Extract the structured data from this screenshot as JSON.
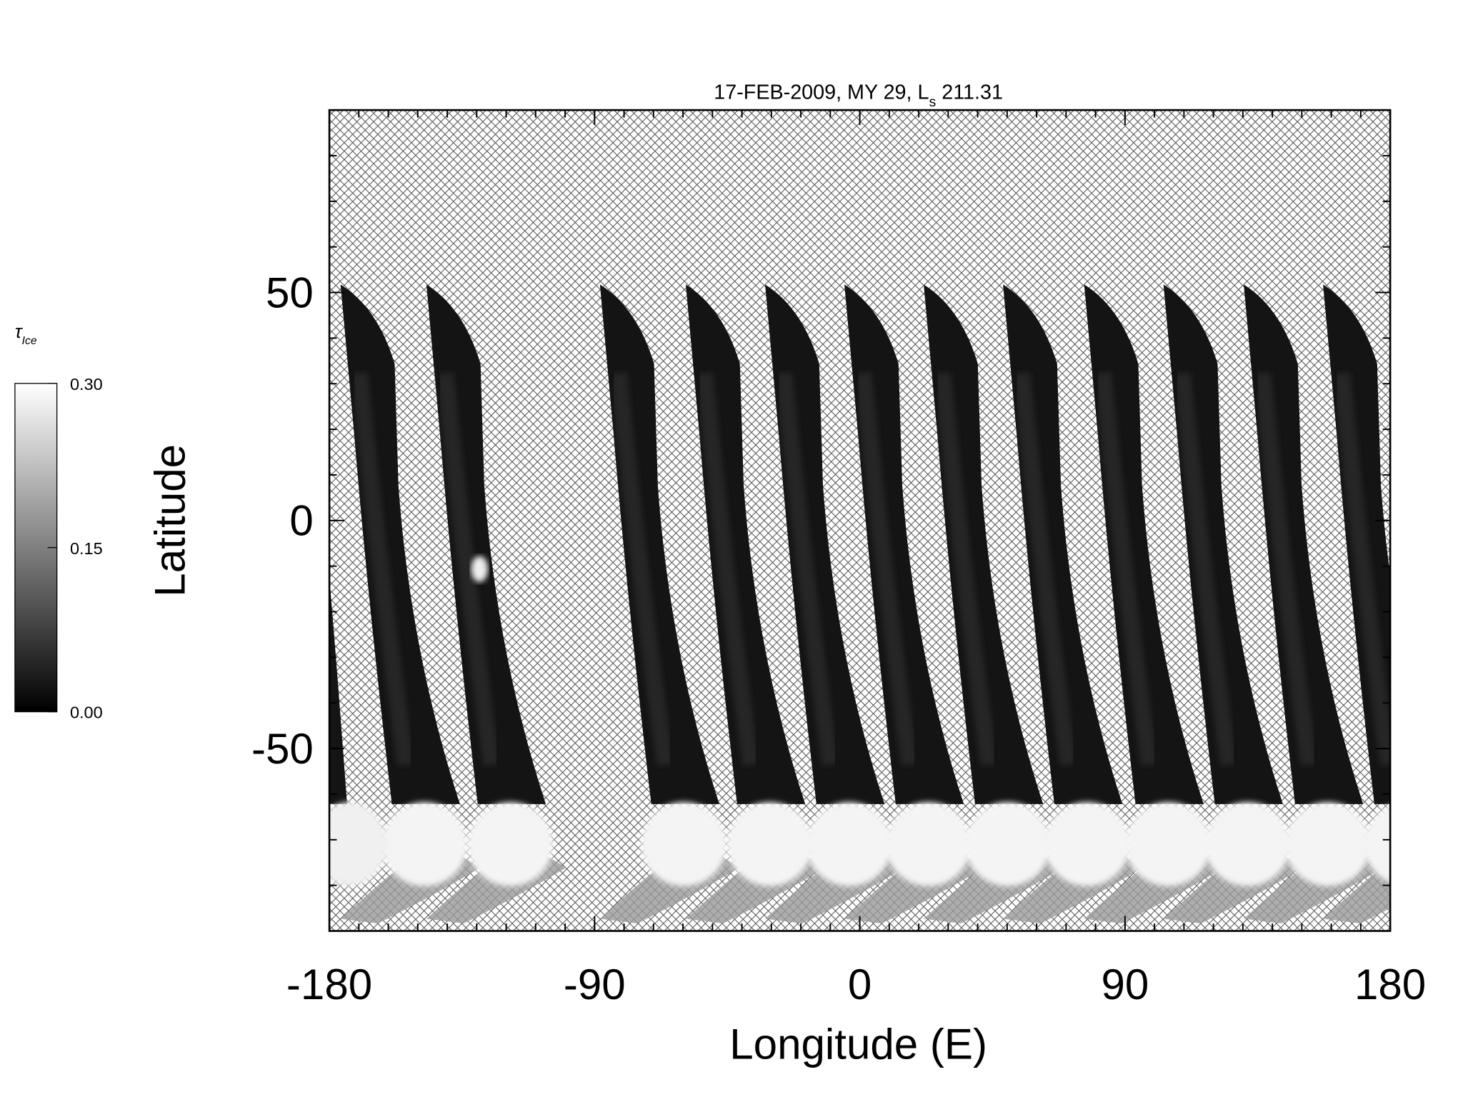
{
  "chart_data": {
    "type": "swath-map",
    "title": [
      "17-FEB-2009, MY 29,  L",
      "s",
      " 211.31"
    ],
    "xlabel": "Longitude (E)",
    "ylabel": "Latitude",
    "xlim": [
      -180,
      180
    ],
    "ylim": [
      -90,
      90
    ],
    "xticks": [
      -180,
      -90,
      0,
      90,
      180
    ],
    "yticks": [
      -50,
      0,
      50
    ],
    "xminorticks": [
      -180,
      -170,
      -160,
      -150,
      -140,
      -130,
      -120,
      -110,
      -100,
      -90,
      -80,
      -70,
      -60,
      -50,
      -40,
      -30,
      -20,
      -10,
      0,
      10,
      20,
      30,
      40,
      50,
      60,
      70,
      80,
      90,
      100,
      110,
      120,
      130,
      140,
      150,
      160,
      170,
      180
    ],
    "yminorticks": [
      -90,
      -80,
      -70,
      -60,
      -50,
      -40,
      -30,
      -20,
      -10,
      0,
      10,
      20,
      30,
      40,
      50,
      60,
      70,
      80,
      90
    ],
    "colorbar": {
      "label": [
        "τ",
        "Ice"
      ],
      "clim": [
        0,
        0.3
      ],
      "ticks": [
        {
          "value": 0,
          "label": "0.00"
        },
        {
          "value": 0.15,
          "label": "0.15"
        },
        {
          "value": 0.3,
          "label": "0.30"
        }
      ],
      "colors": [
        "#000000",
        "#ffffff"
      ]
    }
  }
}
